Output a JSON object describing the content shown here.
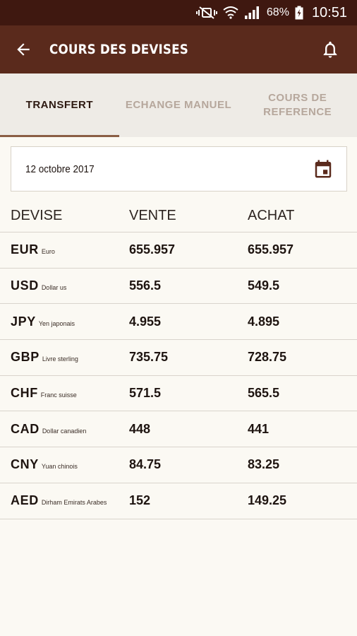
{
  "status_bar": {
    "battery_percent": "68%",
    "time": "10:51",
    "icons": [
      "mute-vibrate-icon",
      "wifi-icon",
      "signal-icon",
      "battery-charging-icon"
    ]
  },
  "app_bar": {
    "title": "COURS DES DEVISES",
    "back_icon": "arrow-back-icon",
    "bell_icon": "bell-icon"
  },
  "tabs": [
    {
      "label": "TRANSFERT",
      "active": true
    },
    {
      "label": "ECHANGE MANUEL",
      "active": false
    },
    {
      "label": "COURS DE\nREFERENCE",
      "active": false
    }
  ],
  "date": {
    "value": "12 octobre 2017",
    "icon": "calendar-icon"
  },
  "table": {
    "headers": {
      "devise": "DEVISE",
      "vente": "VENTE",
      "achat": "ACHAT"
    },
    "rows": [
      {
        "code": "EUR",
        "name": "Euro",
        "vente": "655.957",
        "achat": "655.957"
      },
      {
        "code": "USD",
        "name": "Dollar us",
        "vente": "556.5",
        "achat": "549.5"
      },
      {
        "code": "JPY",
        "name": "Yen japonais",
        "vente": "4.955",
        "achat": "4.895"
      },
      {
        "code": "GBP",
        "name": "Livre sterling",
        "vente": "735.75",
        "achat": "728.75"
      },
      {
        "code": "CHF",
        "name": "Franc suisse",
        "vente": "571.5",
        "achat": "565.5"
      },
      {
        "code": "CAD",
        "name": "Dollar canadien",
        "vente": "448",
        "achat": "441"
      },
      {
        "code": "CNY",
        "name": "Yuan chinois",
        "vente": "84.75",
        "achat": "83.25"
      },
      {
        "code": "AED",
        "name": "Dirham Emirats Arabes",
        "vente": "152",
        "achat": "149.25"
      }
    ]
  },
  "colors": {
    "status_bar": "#3f1810",
    "app_bar": "#5a2a1c",
    "tab_bar": "#eeebe6",
    "tab_indicator": "#8b5e45",
    "background": "#fbf9f3"
  }
}
